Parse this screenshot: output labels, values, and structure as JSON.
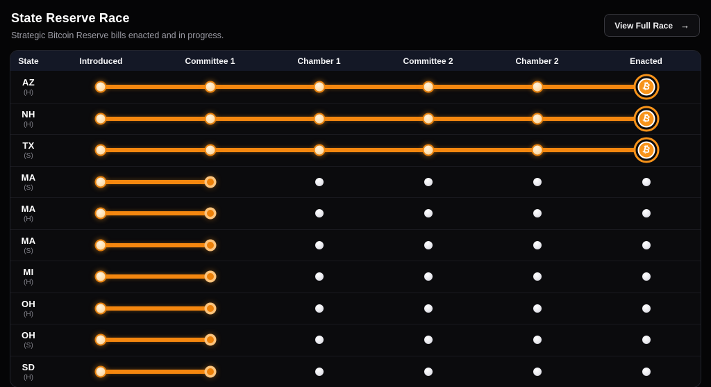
{
  "header": {
    "title": "State Reserve Race",
    "subtitle": "Strategic Bitcoin Reserve bills enacted and in progress.",
    "button": {
      "label": "View Full Race",
      "arrow": "→"
    }
  },
  "table": {
    "columns": [
      "State",
      "Introduced",
      "Committee 1",
      "Chamber 1",
      "Committee 2",
      "Chamber 2",
      "Enacted"
    ],
    "milestones": [
      "Introduced",
      "Committee 1",
      "Chamber 1",
      "Committee 2",
      "Chamber 2",
      "Enacted"
    ],
    "rows": [
      {
        "state": "AZ",
        "chamber": "(H)",
        "progress": 5,
        "enacted": true
      },
      {
        "state": "NH",
        "chamber": "(H)",
        "progress": 5,
        "enacted": true
      },
      {
        "state": "TX",
        "chamber": "(S)",
        "progress": 5,
        "enacted": true
      },
      {
        "state": "MA",
        "chamber": "(S)",
        "progress": 1,
        "enacted": false
      },
      {
        "state": "MA",
        "chamber": "(H)",
        "progress": 1,
        "enacted": false
      },
      {
        "state": "MA",
        "chamber": "(S)",
        "progress": 1,
        "enacted": false
      },
      {
        "state": "MI",
        "chamber": "(H)",
        "progress": 1,
        "enacted": false
      },
      {
        "state": "OH",
        "chamber": "(H)",
        "progress": 1,
        "enacted": false
      },
      {
        "state": "OH",
        "chamber": "(S)",
        "progress": 1,
        "enacted": false
      },
      {
        "state": "SD",
        "chamber": "(H)",
        "progress": 1,
        "enacted": false
      }
    ]
  },
  "icons": {
    "bitcoin": "₿"
  },
  "colors": {
    "accent": "#f7931a",
    "track": "#f5870f",
    "page_bg": "#050506",
    "row_bg": "#0b0b0d",
    "header_bg": "#141826"
  }
}
